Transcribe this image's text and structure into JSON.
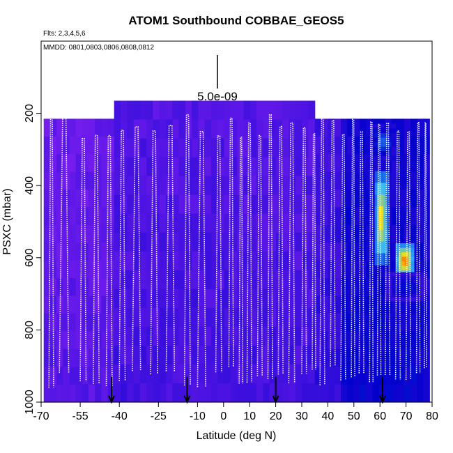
{
  "chart_data": {
    "type": "heatmap",
    "title": "ATOM1 Southbound COBBAE_GEOS5",
    "subtitle": "Flts: 2,3,4,5,6",
    "annotation": "MMDD: 0801,0803,0806,0808,0812",
    "scale_label": "5.0e-09",
    "xlabel": "Latitude (deg N)",
    "ylabel": "PSXC (mbar)",
    "xlim": [
      -70,
      80
    ],
    "ylim": [
      1000,
      0
    ],
    "x_ticks": [
      -70,
      -55,
      -40,
      -25,
      -10,
      0,
      10,
      20,
      30,
      40,
      50,
      60,
      70,
      80
    ],
    "x_tick_labels": [
      "-70",
      "-55",
      "-40",
      "-25",
      "-10",
      "0",
      "10",
      "20",
      "30",
      "40",
      "50",
      "60",
      "70",
      "80"
    ],
    "y_ticks": [
      200,
      400,
      600,
      800,
      1000
    ],
    "y_tick_labels": [
      "200",
      "400",
      "600",
      "800",
      "1000"
    ],
    "background_regions": [
      {
        "lat_range": [
          -69,
          -42
        ],
        "p_range": [
          215,
          1000
        ],
        "level": 0.05
      },
      {
        "lat_range": [
          -42,
          35
        ],
        "p_range": [
          165,
          1000
        ],
        "level": 0.1
      },
      {
        "lat_range": [
          35,
          45
        ],
        "p_range": [
          215,
          1000
        ],
        "level": 0.15
      },
      {
        "lat_range": [
          45,
          79
        ],
        "p_range": [
          215,
          1000
        ],
        "level": 0.25
      }
    ],
    "hotspots": [
      {
        "lat_range": [
          58,
          63
        ],
        "p_range": [
          360,
          620
        ],
        "level": 0.85
      },
      {
        "lat_range": [
          66,
          73
        ],
        "p_range": [
          560,
          660
        ],
        "level": 0.95
      },
      {
        "lat_range": [
          56,
          66
        ],
        "p_range": [
          230,
          330
        ],
        "level": 0.45
      },
      {
        "lat_range": [
          62,
          78
        ],
        "p_range": [
          640,
          720
        ],
        "level": 0.35
      }
    ],
    "flight_dividers_lat": [
      -43,
      -14,
      20,
      61
    ],
    "profiles_lat": [
      -67,
      -63,
      -55,
      -50,
      -45,
      -40,
      -35,
      -28,
      -22,
      -15,
      -10,
      -3,
      2,
      6,
      9,
      13,
      17,
      21,
      25,
      30,
      34,
      37,
      41,
      45,
      49,
      52,
      56,
      59,
      62,
      66,
      70,
      74,
      77
    ],
    "colors": {
      "low": "#7b1ff0",
      "mid": "#0000cc",
      "cyan": "#2fb8ff",
      "yellow": "#ffe000",
      "red": "#ff0000"
    }
  }
}
